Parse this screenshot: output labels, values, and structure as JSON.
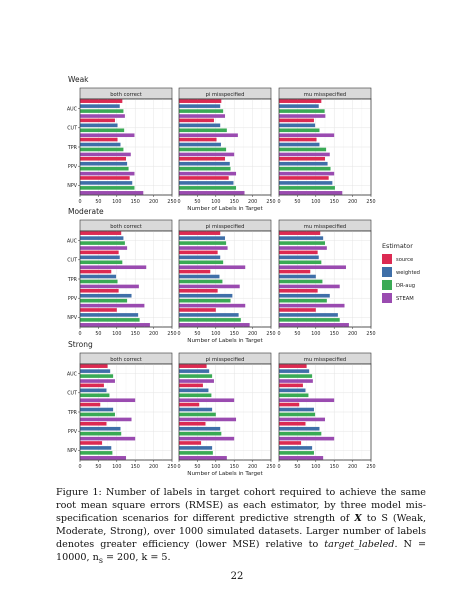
{
  "chart_data": {
    "type": "bar",
    "orientation": "horizontal",
    "xlabel": "Number of Labels in Target",
    "xlim": [
      0,
      250
    ],
    "xticks": [
      0,
      50,
      100,
      150,
      200,
      250
    ],
    "categories": [
      "AUC",
      "CUT",
      "TPR",
      "PPV",
      "NPV"
    ],
    "panels": [
      "both correct",
      "pi misspecified",
      "mu misspecified"
    ],
    "rows": [
      "Weak",
      "Moderate",
      "Strong"
    ],
    "legend": {
      "title": "Estimator",
      "placement": "right",
      "entries": [
        {
          "name": "source",
          "color": "#dc2a52"
        },
        {
          "name": "weighted",
          "color": "#3f6fa8"
        },
        {
          "name": "DR-aug",
          "color": "#3aaa55"
        },
        {
          "name": "STEAM",
          "color": "#9a4bb0"
        }
      ]
    },
    "grid": true,
    "facets": [
      {
        "strength": "Weak",
        "panel": "both correct",
        "values": {
          "AUC": [
            115,
            108,
            118,
            122
          ],
          "CUT": [
            95,
            102,
            120,
            148
          ],
          "TPR": [
            102,
            110,
            118,
            138
          ],
          "PPV": [
            125,
            128,
            132,
            148
          ],
          "NPV": [
            135,
            142,
            148,
            172
          ]
        }
      },
      {
        "strength": "Weak",
        "panel": "pi misspecified",
        "values": {
          "AUC": [
            115,
            112,
            120,
            125
          ],
          "CUT": [
            95,
            112,
            130,
            160
          ],
          "TPR": [
            102,
            114,
            128,
            150
          ],
          "PPV": [
            125,
            138,
            140,
            155
          ],
          "NPV": [
            135,
            148,
            155,
            178
          ]
        }
      },
      {
        "strength": "Weak",
        "panel": "mu misspecified",
        "values": {
          "AUC": [
            115,
            108,
            124,
            126
          ],
          "CUT": [
            95,
            98,
            110,
            150
          ],
          "TPR": [
            102,
            110,
            128,
            138
          ],
          "PPV": [
            125,
            132,
            140,
            150
          ],
          "NPV": [
            135,
            145,
            152,
            172
          ]
        }
      },
      {
        "strength": "Moderate",
        "panel": "both correct",
        "values": {
          "AUC": [
            112,
            118,
            122,
            128
          ],
          "CUT": [
            105,
            108,
            115,
            180
          ],
          "TPR": [
            85,
            98,
            102,
            160
          ],
          "PPV": [
            105,
            140,
            128,
            175
          ],
          "NPV": [
            100,
            158,
            162,
            190
          ]
        }
      },
      {
        "strength": "Moderate",
        "panel": "pi misspecified",
        "values": {
          "AUC": [
            112,
            125,
            128,
            132
          ],
          "CUT": [
            105,
            112,
            120,
            180
          ],
          "TPR": [
            85,
            110,
            118,
            165
          ],
          "PPV": [
            105,
            145,
            140,
            180
          ],
          "NPV": [
            100,
            162,
            168,
            192
          ]
        }
      },
      {
        "strength": "Moderate",
        "panel": "mu misspecified",
        "values": {
          "AUC": [
            112,
            120,
            125,
            130
          ],
          "CUT": [
            105,
            108,
            115,
            182
          ],
          "TPR": [
            85,
            100,
            118,
            165
          ],
          "PPV": [
            105,
            138,
            130,
            178
          ],
          "NPV": [
            100,
            160,
            165,
            190
          ]
        }
      },
      {
        "strength": "Strong",
        "panel": "both correct",
        "values": {
          "AUC": [
            75,
            82,
            90,
            95
          ],
          "CUT": [
            65,
            72,
            80,
            150
          ],
          "TPR": [
            55,
            90,
            95,
            140
          ],
          "PPV": [
            72,
            110,
            112,
            150
          ],
          "NPV": [
            60,
            85,
            88,
            125
          ]
        }
      },
      {
        "strength": "Strong",
        "panel": "pi misspecified",
        "values": {
          "AUC": [
            75,
            82,
            90,
            95
          ],
          "CUT": [
            65,
            80,
            88,
            150
          ],
          "TPR": [
            55,
            90,
            100,
            155
          ],
          "PPV": [
            72,
            112,
            115,
            150
          ],
          "NPV": [
            60,
            90,
            92,
            130
          ]
        }
      },
      {
        "strength": "Strong",
        "panel": "mu misspecified",
        "values": {
          "AUC": [
            75,
            82,
            90,
            92
          ],
          "CUT": [
            65,
            72,
            80,
            150
          ],
          "TPR": [
            55,
            95,
            98,
            125
          ],
          "PPV": [
            72,
            110,
            115,
            150
          ],
          "NPV": [
            60,
            90,
            95,
            120
          ]
        }
      }
    ]
  },
  "caption": {
    "p1": "Figure 1: Number of labels in target cohort required to achieve the same root mean square errors (RMSE) as each estimator, by three model mis-specification scenarios for different predictive strength of ",
    "boldX": "X",
    "p2": " to S (Weak, Moderate, Strong), over 1000 simulated datasets. Larger number of labels denotes greater efficiency (lower MSE) relative to ",
    "italic": "target_labeled",
    "p3": ". N = 10000, n",
    "sub": "s",
    "p4": " = 200, k = 5."
  },
  "page_number": "22"
}
